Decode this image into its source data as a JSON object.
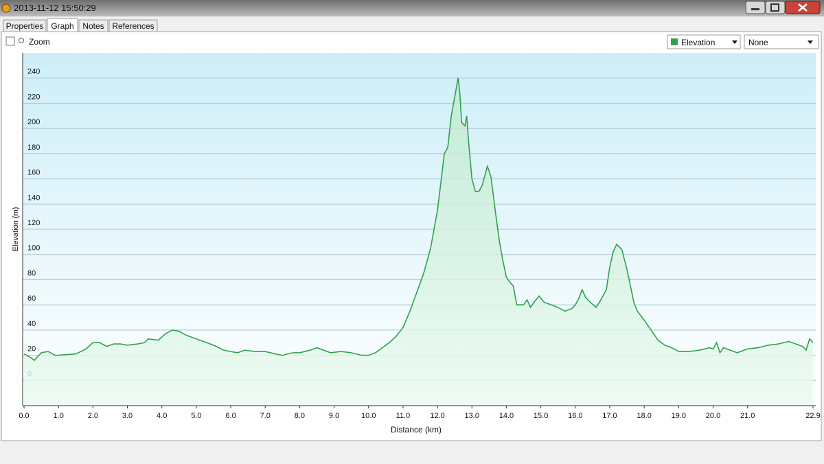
{
  "window": {
    "title": "2013-11-12 15:50:29"
  },
  "tabs": [
    "Properties",
    "Graph",
    "Notes",
    "References"
  ],
  "toolbar": {
    "zoom": "Zoom",
    "second_select": "None"
  },
  "chart_data": {
    "type": "area",
    "x_label": "Distance (km)",
    "y_label": "Elevation (m)",
    "x": [
      0,
      0.2,
      0.3,
      0.5,
      0.7,
      0.9,
      1.0,
      1.5,
      1.8,
      2.0,
      2.2,
      2.4,
      2.6,
      2.8,
      3.0,
      3.3,
      3.5,
      3.6,
      3.9,
      4.1,
      4.3,
      4.5,
      4.7,
      5.0,
      5.3,
      5.5,
      5.8,
      6.0,
      6.2,
      6.4,
      6.7,
      7.0,
      7.3,
      7.5,
      7.8,
      8.0,
      8.3,
      8.5,
      8.7,
      8.9,
      9.2,
      9.5,
      9.8,
      10.0,
      10.2,
      10.4,
      10.6,
      10.8,
      11.0,
      11.2,
      11.4,
      11.6,
      11.8,
      12.0,
      12.2,
      12.3,
      12.4,
      12.5,
      12.6,
      12.65,
      12.7,
      12.8,
      12.85,
      12.9,
      13.0,
      13.1,
      13.2,
      13.3,
      13.4,
      13.45,
      13.55,
      13.7,
      13.8,
      13.9,
      14.0,
      14.1,
      14.2,
      14.3,
      14.5,
      14.6,
      14.7,
      14.8,
      14.95,
      15.1,
      15.3,
      15.5,
      15.7,
      15.9,
      16.0,
      16.1,
      16.2,
      16.3,
      16.4,
      16.6,
      16.7,
      16.9,
      17.0,
      17.1,
      17.2,
      17.35,
      17.5,
      17.6,
      17.7,
      17.8,
      18.0,
      18.2,
      18.4,
      18.6,
      18.8,
      19.0,
      19.3,
      19.6,
      19.9,
      20.0,
      20.1,
      20.2,
      20.3,
      20.5,
      20.7,
      21.0,
      21.3,
      21.6,
      21.9,
      22.2,
      22.4,
      22.6,
      22.7,
      22.8,
      22.9
    ],
    "series": [
      {
        "name": "Elevation",
        "color": "#2fa14c",
        "values": [
          21,
          18,
          16,
          22,
          23,
          20,
          20,
          21,
          25,
          30,
          30,
          27,
          29,
          29,
          28,
          29,
          30,
          33,
          32,
          37,
          40,
          39,
          36,
          33,
          30,
          28,
          24,
          23,
          22,
          24,
          23,
          23,
          21,
          20,
          22,
          22,
          24,
          26,
          24,
          22,
          23,
          22,
          20,
          20,
          22,
          26,
          30,
          35,
          42,
          55,
          70,
          85,
          105,
          135,
          180,
          185,
          210,
          225,
          240,
          228,
          205,
          202,
          210,
          190,
          160,
          150,
          150,
          155,
          165,
          170,
          162,
          130,
          110,
          95,
          82,
          78,
          75,
          60,
          60,
          64,
          58,
          62,
          67,
          62,
          60,
          58,
          55,
          57,
          60,
          65,
          72,
          66,
          63,
          58,
          62,
          72,
          90,
          102,
          108,
          104,
          88,
          75,
          62,
          55,
          48,
          40,
          32,
          28,
          26,
          23,
          23,
          24,
          26,
          25,
          30,
          22,
          26,
          24,
          22,
          25,
          26,
          28,
          29,
          31,
          29,
          27,
          24,
          33,
          30
        ]
      }
    ],
    "xlim": [
      0,
      22.9
    ],
    "ylim": [
      -20,
      260
    ],
    "xticks": [
      {
        "value": 0,
        "label": "0.0"
      },
      {
        "value": 1,
        "label": "1.0"
      },
      {
        "value": 2,
        "label": "2.0"
      },
      {
        "value": 3,
        "label": "3.0"
      },
      {
        "value": 4,
        "label": "4.0"
      },
      {
        "value": 5,
        "label": "5.0"
      },
      {
        "value": 6,
        "label": "6.0"
      },
      {
        "value": 7,
        "label": "7.0"
      },
      {
        "value": 8,
        "label": "8.0"
      },
      {
        "value": 9,
        "label": "9.0"
      },
      {
        "value": 10,
        "label": "10.0"
      },
      {
        "value": 11,
        "label": "11.0"
      },
      {
        "value": 12,
        "label": "12.0"
      },
      {
        "value": 13,
        "label": "13.0"
      },
      {
        "value": 14,
        "label": "14.0"
      },
      {
        "value": 15,
        "label": "15.0"
      },
      {
        "value": 16,
        "label": "16.0"
      },
      {
        "value": 17,
        "label": "17.0"
      },
      {
        "value": 18,
        "label": "18.0"
      },
      {
        "value": 19,
        "label": "19.0"
      },
      {
        "value": 20,
        "label": "20.0"
      },
      {
        "value": 21,
        "label": "21.0"
      },
      22.9
    ],
    "yticks": [
      0,
      20,
      40,
      60,
      80,
      100,
      120,
      140,
      160,
      180,
      200,
      220,
      240
    ],
    "grid": true
  }
}
